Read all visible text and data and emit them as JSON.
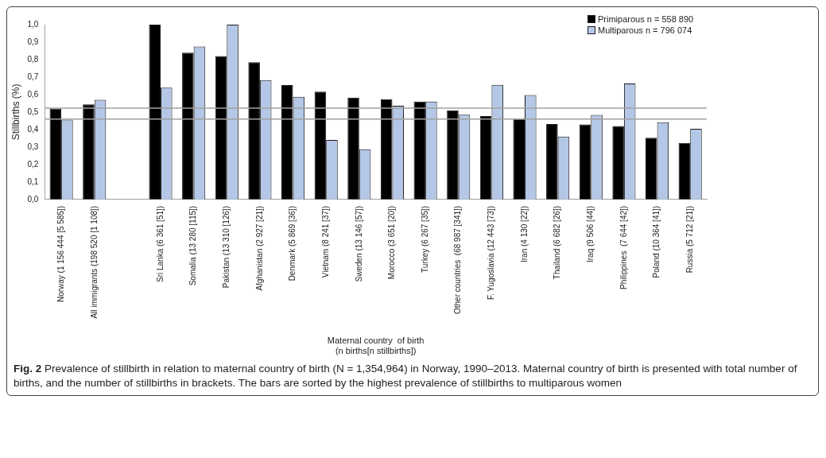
{
  "chart_data": {
    "type": "bar",
    "ylabel": "Stillbirths (%)",
    "xlabel": "Maternal country  of birth\n(n births[n stillbirths])",
    "categories": [
      "Norway (1 156 444 [5 585])",
      "All immigrants (198 520 [1 108])",
      null,
      "Sri Lanka (6 361 [51])",
      "Somalia (13 280 [115])",
      "Pakistan (13 310 [126])",
      "Afghanistan (2 927 [21])",
      "Denmark (5 869 [36])",
      "Vietnam (8 241 [37])",
      "Sweden (13 146 [57])",
      "Morocco (3 651 [20])",
      "Turkey (6 267 [35])",
      "Other countries  (68 987 [341])",
      "F. Yugoslavia (12 443 [73])",
      "Iran (4 130 [22])",
      "Thailand (6 682 [26])",
      "Iraq (9 506 [44])",
      "Philippines  (7 644 [42])",
      "Poland (10 364 [41])",
      "Russia (5 712 [21])"
    ],
    "series": [
      {
        "name": "Primiparous  n = 558 890",
        "color": "#000000",
        "values": [
          0.52,
          0.544,
          null,
          1.0,
          0.84,
          0.82,
          0.785,
          0.654,
          0.617,
          0.583,
          0.574,
          0.56,
          0.51,
          0.477,
          0.461,
          0.431,
          0.429,
          0.42,
          0.353,
          0.323
        ]
      },
      {
        "name": "Multiparous  n = 796 074",
        "color": "#b4c7e7",
        "values": [
          0.457,
          0.57,
          null,
          0.64,
          0.875,
          1.0,
          0.683,
          0.587,
          0.34,
          0.287,
          0.536,
          0.56,
          0.485,
          0.656,
          0.597,
          0.36,
          0.484,
          0.664,
          0.442,
          0.404
        ]
      }
    ],
    "ylim": [
      0,
      1
    ],
    "yticks": [
      {
        "value": 0,
        "label": "0,0"
      },
      {
        "value": 0.1,
        "label": "0,1"
      },
      {
        "value": 0.2,
        "label": "0,2"
      },
      {
        "value": 0.3,
        "label": "0,3"
      },
      {
        "value": 0.4,
        "label": "0,4"
      },
      {
        "value": 0.5,
        "label": "0,5"
      },
      {
        "value": 0.6,
        "label": "0,6"
      },
      {
        "value": 0.7,
        "label": "0,7"
      },
      {
        "value": 0.8,
        "label": "0,8"
      },
      {
        "value": 0.9,
        "label": "0,9"
      },
      {
        "value": 1,
        "label": "1,0"
      }
    ],
    "ref_lines": [
      {
        "axis": "y",
        "value": 0.522,
        "color": "#a0a0a0"
      },
      {
        "axis": "y",
        "value": 0.46,
        "color": "#a0a0a0"
      }
    ],
    "grid": false,
    "legend": "top right",
    "annotations": [
      "Fig. 2 Prevalence of stillbirth in relation to maternal country of birth (N = 1,354,964) in Norway, 1990–2013. Maternal country of birth is presented with total number of births, and the number of stillbirths in brackets. The bars are sorted by the highest prevalence of stillbirths to multiparous women"
    ]
  }
}
